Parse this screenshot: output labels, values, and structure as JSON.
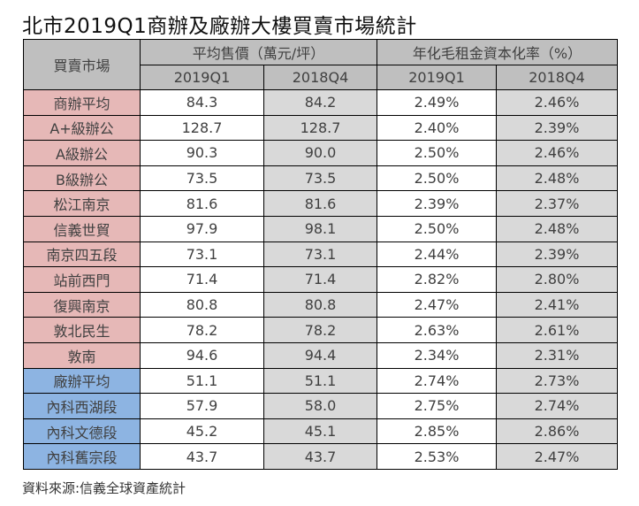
{
  "title": "北市2019Q1商辦及廠辦大樓買賣市場統計",
  "table": {
    "header": {
      "market_label": "買賣市場",
      "price_group_label": "平均售價（萬元/坪）",
      "yield_group_label": "年化毛租金資本化率（%）",
      "periods": [
        "2019Q1",
        "2018Q4",
        "2019Q1",
        "2018Q4"
      ]
    },
    "colors": {
      "header_bg": "#BFBFBF",
      "office_bg": "#E6B8B7",
      "factory_bg": "#8DB4E2",
      "prev_bg": "#D9D9D9",
      "cur_bg": "#FFFFFF"
    },
    "rows": [
      {
        "name": "商辦平均",
        "type": "office",
        "price_2019q1": "84.3",
        "price_2018q4": "84.2",
        "yield_2019q1": "2.49%",
        "yield_2018q4": "2.46%"
      },
      {
        "name": "A+級辦公",
        "type": "office",
        "price_2019q1": "128.7",
        "price_2018q4": "128.7",
        "yield_2019q1": "2.40%",
        "yield_2018q4": "2.39%"
      },
      {
        "name": "A級辦公",
        "type": "office",
        "price_2019q1": "90.3",
        "price_2018q4": "90.0",
        "yield_2019q1": "2.50%",
        "yield_2018q4": "2.46%"
      },
      {
        "name": "B級辦公",
        "type": "office",
        "price_2019q1": "73.5",
        "price_2018q4": "73.5",
        "yield_2019q1": "2.50%",
        "yield_2018q4": "2.48%"
      },
      {
        "name": "松江南京",
        "type": "office",
        "price_2019q1": "81.6",
        "price_2018q4": "81.6",
        "yield_2019q1": "2.39%",
        "yield_2018q4": "2.37%"
      },
      {
        "name": "信義世貿",
        "type": "office",
        "price_2019q1": "97.9",
        "price_2018q4": "98.1",
        "yield_2019q1": "2.50%",
        "yield_2018q4": "2.48%"
      },
      {
        "name": "南京四五段",
        "type": "office",
        "price_2019q1": "73.1",
        "price_2018q4": "73.1",
        "yield_2019q1": "2.44%",
        "yield_2018q4": "2.39%"
      },
      {
        "name": "站前西門",
        "type": "office",
        "price_2019q1": "71.4",
        "price_2018q4": "71.4",
        "yield_2019q1": "2.82%",
        "yield_2018q4": "2.80%"
      },
      {
        "name": "復興南京",
        "type": "office",
        "price_2019q1": "80.8",
        "price_2018q4": "80.8",
        "yield_2019q1": "2.47%",
        "yield_2018q4": "2.41%"
      },
      {
        "name": "敦北民生",
        "type": "office",
        "price_2019q1": "78.2",
        "price_2018q4": "78.2",
        "yield_2019q1": "2.63%",
        "yield_2018q4": "2.61%"
      },
      {
        "name": "敦南",
        "type": "office",
        "price_2019q1": "94.6",
        "price_2018q4": "94.4",
        "yield_2019q1": "2.34%",
        "yield_2018q4": "2.31%"
      },
      {
        "name": "廠辦平均",
        "type": "factory",
        "price_2019q1": "51.1",
        "price_2018q4": "51.1",
        "yield_2019q1": "2.74%",
        "yield_2018q4": "2.73%"
      },
      {
        "name": "內科西湖段",
        "type": "factory",
        "price_2019q1": "57.9",
        "price_2018q4": "58.0",
        "yield_2019q1": "2.75%",
        "yield_2018q4": "2.74%"
      },
      {
        "name": "內科文德段",
        "type": "factory",
        "price_2019q1": "45.2",
        "price_2018q4": "45.1",
        "yield_2019q1": "2.85%",
        "yield_2018q4": "2.86%"
      },
      {
        "name": "內科舊宗段",
        "type": "factory",
        "price_2019q1": "43.7",
        "price_2018q4": "43.7",
        "yield_2019q1": "2.53%",
        "yield_2018q4": "2.47%"
      }
    ]
  },
  "footnote": "資料來源:信義全球資產統計"
}
